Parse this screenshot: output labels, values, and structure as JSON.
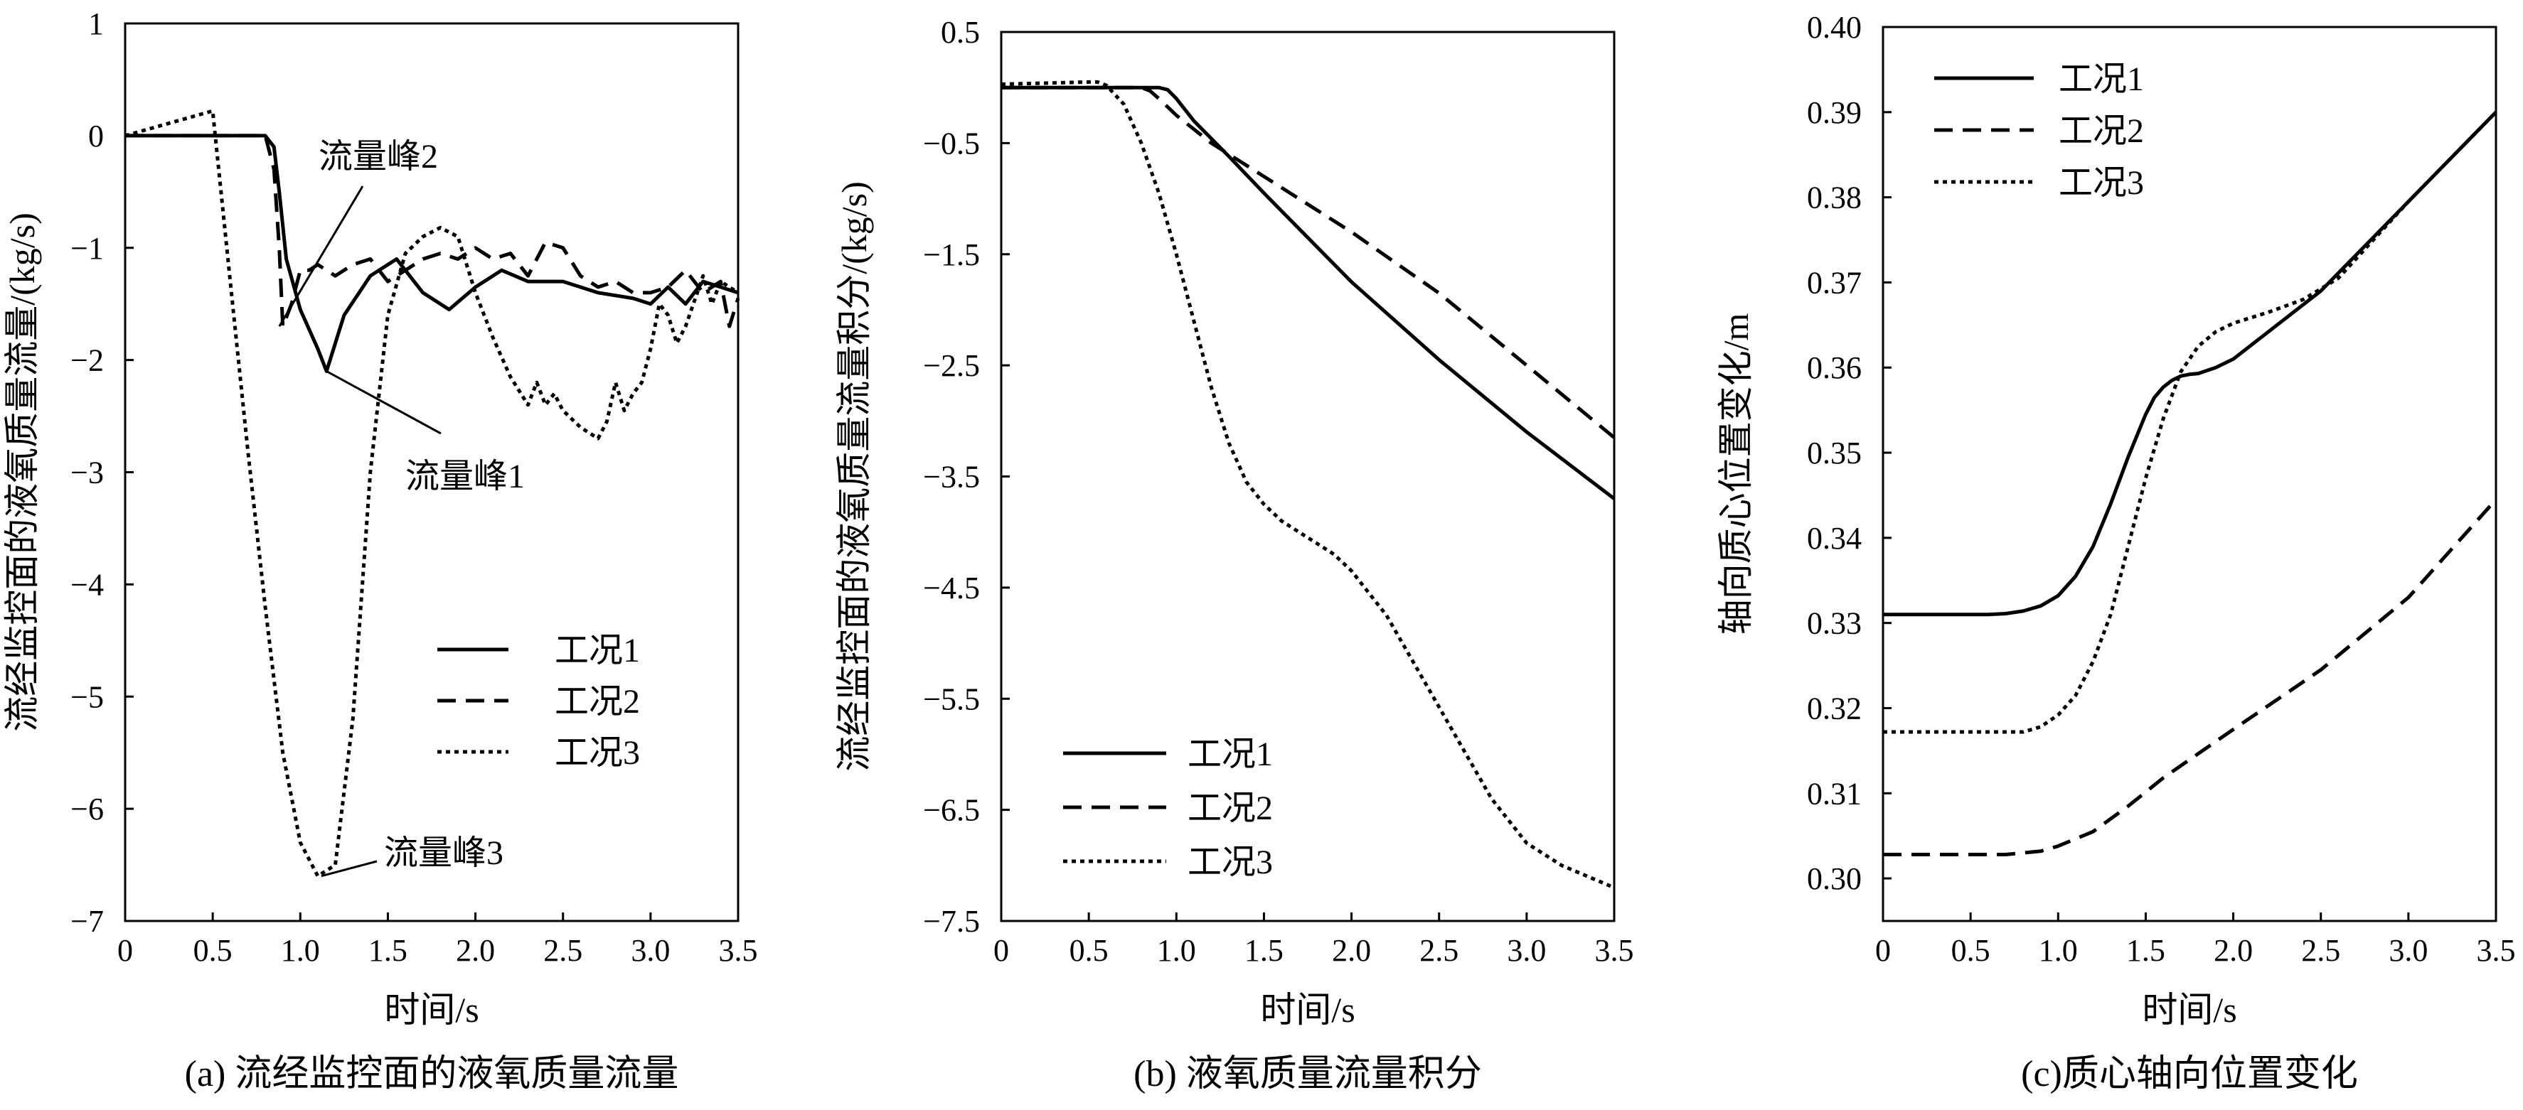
{
  "chart_data": [
    {
      "type": "line",
      "panel_id": "a",
      "caption": "(a) 流经监控面的液氧质量流量",
      "xlabel": "时间/s",
      "ylabel": "流经监控面的液氧质量流量/(kg/s)",
      "xlim": [
        0,
        3.5
      ],
      "ylim": [
        -7,
        1
      ],
      "xticks": [
        0,
        0.5,
        1.0,
        1.5,
        2.0,
        2.5,
        3.0,
        3.5
      ],
      "xtick_labels": [
        "0",
        "0.5",
        "1.0",
        "1.5",
        "2.0",
        "2.5",
        "3.0",
        "3.5"
      ],
      "yticks": [
        1,
        0,
        -1,
        -2,
        -3,
        -4,
        -5,
        -6,
        -7
      ],
      "ytick_labels": [
        "1",
        "0",
        "−1",
        "−2",
        "−3",
        "−4",
        "−5",
        "−6",
        "−7"
      ],
      "grid": false,
      "legend_position": "lower-right",
      "series": [
        {
          "name": "工况1",
          "style": "solid",
          "x": [
            0,
            0.8,
            0.85,
            0.88,
            0.92,
            1.0,
            1.1,
            1.15,
            1.25,
            1.4,
            1.55,
            1.7,
            1.85,
            2.0,
            2.15,
            2.3,
            2.5,
            2.7,
            2.9,
            3.0,
            3.1,
            3.2,
            3.3,
            3.4,
            3.5
          ],
          "y": [
            0,
            0,
            -0.1,
            -0.5,
            -1.1,
            -1.55,
            -1.9,
            -2.1,
            -1.6,
            -1.25,
            -1.1,
            -1.4,
            -1.55,
            -1.35,
            -1.2,
            -1.3,
            -1.3,
            -1.4,
            -1.45,
            -1.5,
            -1.35,
            -1.5,
            -1.3,
            -1.35,
            -1.4
          ]
        },
        {
          "name": "工况2",
          "style": "dashed",
          "x": [
            0,
            0.8,
            0.85,
            0.88,
            0.9,
            0.95,
            1.0,
            1.05,
            1.1,
            1.2,
            1.3,
            1.4,
            1.5,
            1.6,
            1.7,
            1.8,
            1.9,
            2.0,
            2.1,
            2.2,
            2.3,
            2.4,
            2.5,
            2.6,
            2.7,
            2.8,
            2.9,
            3.0,
            3.1,
            3.2,
            3.3,
            3.4,
            3.45,
            3.5
          ],
          "y": [
            0,
            0,
            -0.3,
            -1.0,
            -1.7,
            -1.5,
            -1.2,
            -1.2,
            -1.15,
            -1.25,
            -1.15,
            -1.1,
            -1.3,
            -1.2,
            -1.1,
            -1.05,
            -1.1,
            -1.0,
            -1.1,
            -1.05,
            -1.25,
            -0.95,
            -1.0,
            -1.25,
            -1.35,
            -1.3,
            -1.4,
            -1.4,
            -1.35,
            -1.2,
            -1.4,
            -1.3,
            -1.7,
            -1.45
          ]
        },
        {
          "name": "工况3",
          "style": "dotted",
          "x": [
            0,
            0.5,
            0.6,
            0.7,
            0.8,
            0.9,
            1.0,
            1.1,
            1.15,
            1.2,
            1.3,
            1.4,
            1.5,
            1.6,
            1.7,
            1.8,
            1.9,
            2.0,
            2.1,
            2.2,
            2.3,
            2.35,
            2.4,
            2.45,
            2.5,
            2.6,
            2.7,
            2.75,
            2.8,
            2.85,
            2.9,
            2.95,
            3.0,
            3.05,
            3.1,
            3.15,
            3.2,
            3.3,
            3.35,
            3.4,
            3.5
          ],
          "y": [
            0,
            0.22,
            -1.3,
            -2.8,
            -4.2,
            -5.5,
            -6.3,
            -6.6,
            -6.55,
            -6.5,
            -5.2,
            -3.0,
            -1.6,
            -1.05,
            -0.9,
            -0.82,
            -0.9,
            -1.4,
            -1.8,
            -2.15,
            -2.4,
            -2.2,
            -2.4,
            -2.3,
            -2.45,
            -2.6,
            -2.7,
            -2.55,
            -2.2,
            -2.45,
            -2.3,
            -2.2,
            -1.9,
            -1.5,
            -1.6,
            -1.85,
            -1.7,
            -1.25,
            -1.5,
            -1.3,
            -1.4
          ]
        }
      ],
      "annotations": [
        {
          "text": "流量峰2",
          "x": 0.88,
          "y": -1.7
        },
        {
          "text": "流量峰1",
          "x": 1.15,
          "y": -2.1
        },
        {
          "text": "流量峰3",
          "x": 1.12,
          "y": -6.6
        }
      ]
    },
    {
      "type": "line",
      "panel_id": "b",
      "caption": "(b) 液氧质量流量积分",
      "xlabel": "时间/s",
      "ylabel": "流经监控面的液氧质量流量积分/(kg/s)",
      "xlim": [
        0,
        3.5
      ],
      "ylim": [
        -7.5,
        0.5
      ],
      "xticks": [
        0,
        0.5,
        1.0,
        1.5,
        2.0,
        2.5,
        3.0,
        3.5
      ],
      "xtick_labels": [
        "0",
        "0.5",
        "1.0",
        "1.5",
        "2.0",
        "2.5",
        "3.0",
        "3.5"
      ],
      "yticks": [
        0.5,
        -0.5,
        -1.5,
        -2.5,
        -3.5,
        -4.5,
        -5.5,
        -6.5,
        -7.5
      ],
      "ytick_labels": [
        "0.5",
        "−0.5",
        "−1.5",
        "−2.5",
        "−3.5",
        "−4.5",
        "−5.5",
        "−6.5",
        "−7.5"
      ],
      "grid": false,
      "legend_position": "lower-left",
      "series": [
        {
          "name": "工况1",
          "style": "solid",
          "x": [
            0,
            0.9,
            0.95,
            1.0,
            1.1,
            1.3,
            1.5,
            2.0,
            2.5,
            3.0,
            3.5
          ],
          "y": [
            0,
            0,
            -0.02,
            -0.1,
            -0.3,
            -0.62,
            -0.95,
            -1.75,
            -2.45,
            -3.1,
            -3.7
          ]
        },
        {
          "name": "工况2",
          "style": "dashed",
          "x": [
            0,
            0.8,
            0.85,
            0.9,
            1.0,
            1.2,
            1.5,
            2.0,
            2.5,
            3.0,
            3.5
          ],
          "y": [
            0,
            0,
            -0.03,
            -0.1,
            -0.25,
            -0.5,
            -0.8,
            -1.3,
            -1.85,
            -2.5,
            -3.15
          ]
        },
        {
          "name": "工况3",
          "style": "dotted",
          "x": [
            0,
            0.5,
            0.55,
            0.6,
            0.7,
            0.8,
            0.9,
            1.0,
            1.1,
            1.2,
            1.3,
            1.4,
            1.5,
            1.6,
            1.7,
            1.8,
            1.9,
            2.0,
            2.2,
            2.4,
            2.6,
            2.8,
            3.0,
            3.2,
            3.35,
            3.5
          ],
          "y": [
            0.03,
            0.05,
            0.05,
            0.02,
            -0.15,
            -0.5,
            -0.95,
            -1.5,
            -2.1,
            -2.7,
            -3.2,
            -3.55,
            -3.75,
            -3.9,
            -4.0,
            -4.1,
            -4.2,
            -4.35,
            -4.75,
            -5.3,
            -5.85,
            -6.4,
            -6.8,
            -7.0,
            -7.1,
            -7.2
          ]
        }
      ]
    },
    {
      "type": "line",
      "panel_id": "c",
      "caption": "(c)质心轴向位置变化",
      "xlabel": "时间/s",
      "ylabel": "轴向质心位置变化/m",
      "xlim": [
        0,
        3.5
      ],
      "ylim": [
        0.295,
        0.4
      ],
      "xticks": [
        0,
        0.5,
        1.0,
        1.5,
        2.0,
        2.5,
        3.0,
        3.5
      ],
      "xtick_labels": [
        "0",
        "0.5",
        "1.0",
        "1.5",
        "2.0",
        "2.5",
        "3.0",
        "3.5"
      ],
      "yticks": [
        0.4,
        0.39,
        0.38,
        0.37,
        0.36,
        0.35,
        0.34,
        0.33,
        0.32,
        0.31,
        0.3
      ],
      "ytick_labels": [
        "0.40",
        "0.39",
        "0.38",
        "0.37",
        "0.36",
        "0.35",
        "0.34",
        "0.33",
        "0.32",
        "0.31",
        "0.30"
      ],
      "grid": false,
      "legend_position": "top-left",
      "series": [
        {
          "name": "工况1",
          "style": "solid",
          "x": [
            0,
            0.6,
            0.7,
            0.8,
            0.9,
            1.0,
            1.1,
            1.2,
            1.3,
            1.4,
            1.5,
            1.55,
            1.6,
            1.65,
            1.7,
            1.75,
            1.8,
            1.9,
            2.0,
            2.5,
            3.0,
            3.5
          ],
          "y": [
            0.331,
            0.331,
            0.3311,
            0.3314,
            0.332,
            0.3332,
            0.3355,
            0.339,
            0.344,
            0.3495,
            0.3545,
            0.3565,
            0.3577,
            0.3585,
            0.359,
            0.3592,
            0.3593,
            0.36,
            0.361,
            0.369,
            0.3795,
            0.39
          ]
        },
        {
          "name": "工况2",
          "style": "dashed",
          "x": [
            0,
            0.7,
            0.9,
            1.0,
            1.2,
            1.4,
            1.6,
            2.0,
            2.5,
            3.0,
            3.5
          ],
          "y": [
            0.3028,
            0.3028,
            0.3032,
            0.3038,
            0.3055,
            0.3085,
            0.3118,
            0.3175,
            0.3245,
            0.333,
            0.3445
          ]
        },
        {
          "name": "工况3",
          "style": "dotted",
          "x": [
            0,
            0.8,
            0.9,
            1.0,
            1.1,
            1.2,
            1.3,
            1.4,
            1.5,
            1.6,
            1.7,
            1.8,
            1.9,
            2.0,
            2.2,
            2.4,
            2.6,
            3.0,
            3.5
          ],
          "y": [
            0.3172,
            0.3172,
            0.3178,
            0.3192,
            0.3215,
            0.3255,
            0.331,
            0.339,
            0.347,
            0.354,
            0.3595,
            0.3625,
            0.3642,
            0.3652,
            0.3665,
            0.368,
            0.3705,
            0.3795,
            0.39
          ]
        }
      ]
    }
  ]
}
